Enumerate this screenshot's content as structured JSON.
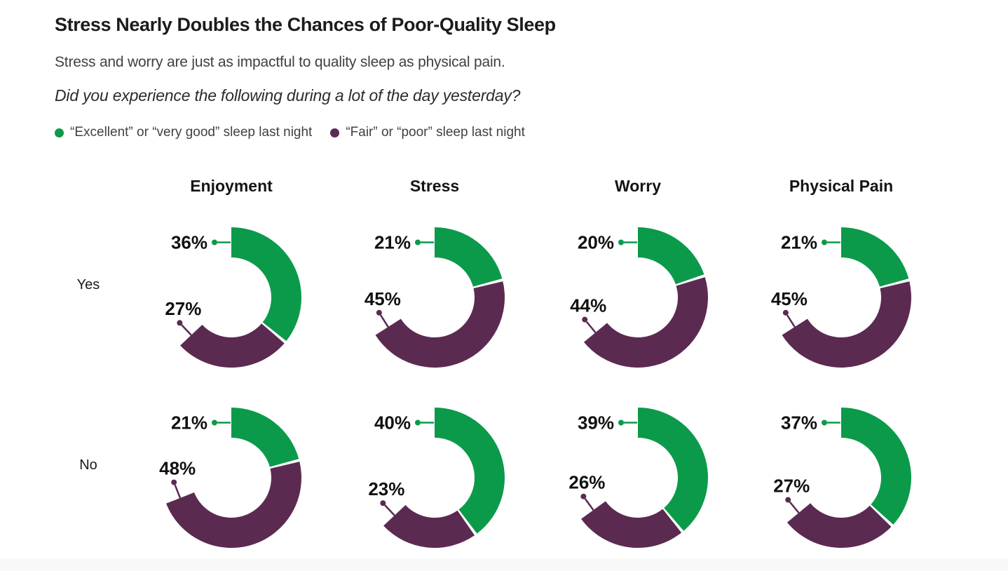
{
  "header": {
    "title": "Stress Nearly Doubles the Chances of Poor-Quality Sleep",
    "subtitle": "Stress and worry are just as impactful to quality sleep as physical pain.",
    "question": "Did you experience the following during a lot of the day yesterday?"
  },
  "legend": [
    {
      "label": "“Excellent” or “very good” sleep last night",
      "color": "#0b9a4a"
    },
    {
      "label": "“Fair” or “poor” sleep last night",
      "color": "#5b2a51"
    }
  ],
  "chart_data": {
    "type": "pie",
    "variant": "donut-grid",
    "unit": "%",
    "start_angle": "top",
    "direction": "clockwise",
    "columns": [
      "Enjoyment",
      "Stress",
      "Worry",
      "Physical Pain"
    ],
    "rows": [
      "Yes",
      "No"
    ],
    "series": [
      {
        "name": "“Excellent” or “very good” sleep last night",
        "color": "#0b9a4a",
        "values": [
          [
            36,
            21,
            20,
            21
          ],
          [
            21,
            40,
            39,
            37
          ]
        ]
      },
      {
        "name": "“Fair” or “poor” sleep last night",
        "color": "#5b2a51",
        "values": [
          [
            27,
            45,
            44,
            45
          ],
          [
            48,
            23,
            26,
            27
          ]
        ]
      }
    ]
  }
}
